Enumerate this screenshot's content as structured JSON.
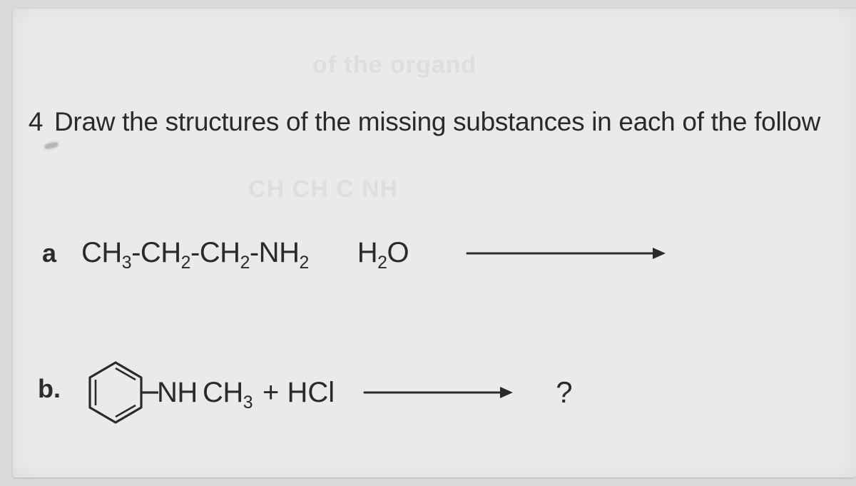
{
  "question": {
    "number": "4",
    "text": "Draw the structures of the missing substances in each of the follow"
  },
  "parts": {
    "a": {
      "label": "a",
      "reactant_html": "CH<sub>3</sub>-CH<sub>2</sub>-CH<sub>2</sub>-NH<sub>2</sub>",
      "reagent_html": "H<sub>2</sub>O",
      "arrow": {
        "length": 280,
        "stroke": "#2a2a2c",
        "stroke_width": 3
      }
    },
    "b": {
      "label": "b.",
      "benzene": {
        "size": 92,
        "stroke": "#2a2a2c",
        "stroke_width": 3
      },
      "substituent_html": "NH<sup style=\"font-size:0.5em;vertical-align:super;line-height:0\">-</sup>CH<sub>3</sub>",
      "plus_html": "+ HCl",
      "arrow": {
        "length": 210,
        "stroke": "#2a2a2c",
        "stroke_width": 3
      },
      "product": "?"
    }
  },
  "colors": {
    "page_bg": "#e9eaeb",
    "outer_bg": "#d8dadb",
    "text": "#2a2a2c"
  }
}
